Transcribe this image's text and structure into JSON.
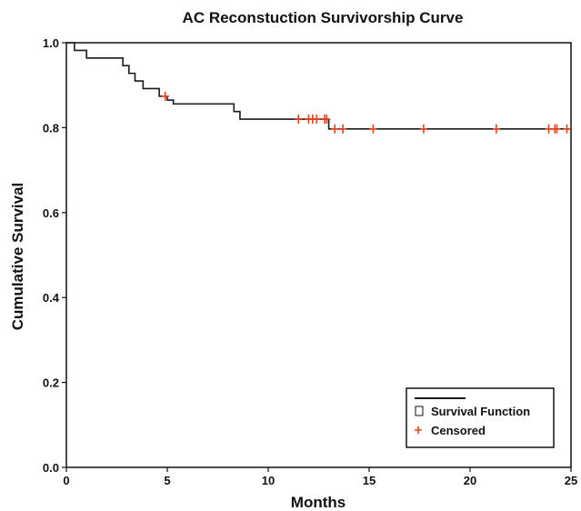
{
  "chart_data": {
    "type": "line",
    "title": "AC Reconstuction Survivorship Curve",
    "xlabel": "Months",
    "ylabel": "Cumulative Survival",
    "xlim": [
      0,
      25
    ],
    "ylim": [
      0.0,
      1.0
    ],
    "x_ticks": [
      0,
      5,
      10,
      15,
      20,
      25
    ],
    "x_tick_labels": [
      "0",
      "5",
      "10",
      "15",
      "20",
      "25"
    ],
    "y_ticks": [
      0.0,
      0.2,
      0.4,
      0.6,
      0.8,
      1.0
    ],
    "y_tick_labels": [
      "0.0",
      "0.2",
      "0.4",
      "0.6",
      "0.8",
      "1.0"
    ],
    "grid": false,
    "legend_position": "bottom-right",
    "series": [
      {
        "name": "Survival Function",
        "color": "#1a1a1a",
        "step": true,
        "x": [
          0,
          0.4,
          1.0,
          2.8,
          3.1,
          3.4,
          3.8,
          4.6,
          5.0,
          5.3,
          8.3,
          8.6,
          13.0,
          25
        ],
        "y": [
          1.0,
          0.982,
          0.964,
          0.946,
          0.928,
          0.91,
          0.892,
          0.874,
          0.865,
          0.856,
          0.838,
          0.82,
          0.797,
          0.797
        ]
      }
    ],
    "censored": {
      "name": "Censored",
      "color": "#e8401c",
      "x": [
        4.9,
        11.5,
        12.0,
        12.2,
        12.4,
        12.8,
        12.9,
        13.3,
        13.7,
        15.2,
        17.7,
        21.3,
        23.9,
        24.2,
        24.3,
        24.8
      ],
      "y": [
        0.874,
        0.82,
        0.82,
        0.82,
        0.82,
        0.82,
        0.82,
        0.797,
        0.797,
        0.797,
        0.797,
        0.797,
        0.797,
        0.797,
        0.797,
        0.797
      ]
    }
  },
  "legend": {
    "survival_label": "Survival Function",
    "censored_label": "Censored"
  }
}
